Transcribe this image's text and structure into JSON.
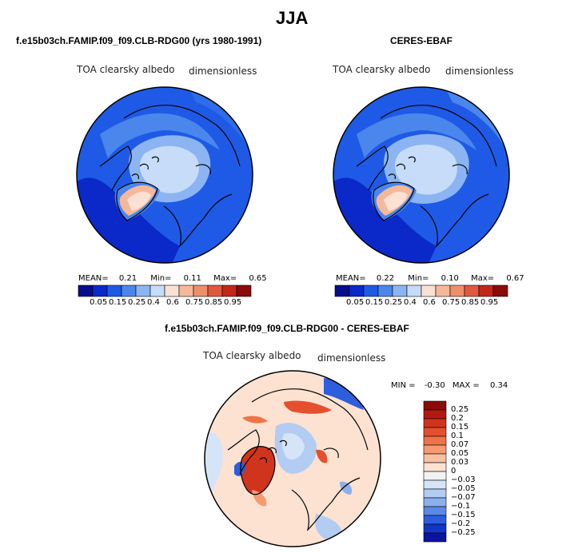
{
  "title": "JJA",
  "panels": [
    {
      "title": "f.e15b03ch.FAMIP.f09_f09.CLB-RDG00 (yrs 1980-1991)",
      "variable": "TOA clearsky albedo",
      "units": "dimensionless",
      "stats": {
        "mean_label": "MEAN=",
        "mean": "0.21",
        "min_label": "Min=",
        "min": "0.11",
        "max_label": "Max=",
        "max": "0.65"
      }
    },
    {
      "title": "CERES-EBAF",
      "variable": "TOA clearsky albedo",
      "units": "dimensionless",
      "stats": {
        "mean_label": "MEAN=",
        "mean": "0.22",
        "min_label": "Min=",
        "min": "0.10",
        "max_label": "Max=",
        "max": "0.67"
      }
    },
    {
      "title": "f.e15b03ch.FAMIP.f09_f09.CLB-RDG00 - CERES-EBAF",
      "variable": "TOA clearsky albedo",
      "units": "dimensionless",
      "stats": {
        "min_label": "MIN =",
        "min": "-0.30",
        "max_label": "MAX =",
        "max": "0.34"
      }
    }
  ],
  "colorbar_abs": {
    "labels": [
      "0.05",
      "0.15",
      "0.25",
      "0.4",
      "0.6",
      "0.75",
      "0.85",
      "0.95"
    ],
    "colors": [
      "#0a0a8c",
      "#0b28c8",
      "#1e5ae6",
      "#4a86ec",
      "#8cb4f2",
      "#c6dcf8",
      "#fbe1d4",
      "#f6b89a",
      "#ee8f6c",
      "#e2583e",
      "#c22818",
      "#8b0a0a"
    ]
  },
  "colorbar_diff": {
    "labels": [
      "0.25",
      "0.2",
      "0.15",
      "0.1",
      "0.07",
      "0.05",
      "0.03",
      "0",
      "−0.03",
      "−0.05",
      "−0.07",
      "−0.1",
      "−0.15",
      "−0.2",
      "−0.25"
    ],
    "colors": [
      "#8b0a0a",
      "#b21a10",
      "#d0341c",
      "#e4502e",
      "#ee7448",
      "#f59a72",
      "#f9c0a2",
      "#fde2d2",
      "#f2f2f2",
      "#d6e4f8",
      "#b2ccf2",
      "#8cb0ec",
      "#5a8ae6",
      "#2c5ede",
      "#1234c8",
      "#0a14a0"
    ]
  }
}
